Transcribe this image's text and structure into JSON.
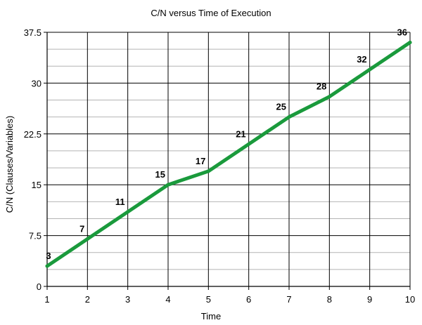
{
  "chart_data": {
    "type": "line",
    "title": "C/N versus Time of Execution",
    "xlabel": "Time",
    "ylabel": "C/N (Clauses/Variables)",
    "x": [
      1,
      2,
      3,
      4,
      5,
      6,
      7,
      8,
      9,
      10
    ],
    "series": [
      {
        "values": [
          3,
          7,
          11,
          15,
          17,
          21,
          25,
          28,
          32,
          36
        ],
        "color": "#1a9a3c"
      }
    ],
    "data_labels": [
      "3",
      "7",
      "11",
      "15",
      "17",
      "21",
      "25",
      "28",
      "32",
      "36"
    ],
    "xlim": [
      1,
      10
    ],
    "ylim": [
      0,
      37.5
    ],
    "x_ticks": [
      "1",
      "2",
      "3",
      "4",
      "5",
      "6",
      "7",
      "8",
      "9",
      "10"
    ],
    "y_ticks": [
      "0",
      "7.5",
      "15",
      "22.5",
      "30",
      "37.5"
    ],
    "y_tick_values": [
      0,
      7.5,
      15,
      22.5,
      30,
      37.5
    ],
    "y_minor_step": 2.5,
    "grid": true,
    "legend": false
  }
}
